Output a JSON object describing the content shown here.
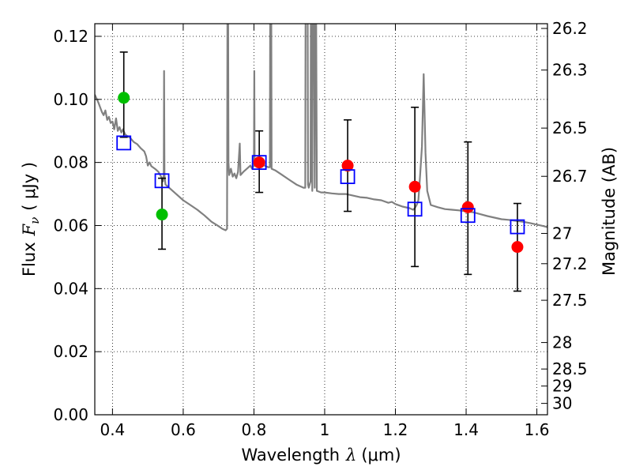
{
  "chart_data": {
    "type": "scatter",
    "title": "",
    "xlabel": "Wavelength",
    "xlabel_symbol": "λ",
    "xlabel_unit": "(μm)",
    "ylabel": "Flux",
    "ylabel_symbol": "F",
    "ylabel_subscript": "ν",
    "ylabel_unit": "( μJy )",
    "y2label": "Magnitude (AB)",
    "xlim": [
      0.35,
      1.63
    ],
    "ylim": [
      0.0,
      0.124
    ],
    "grid": true,
    "x_ticks": [
      {
        "value": 0.4,
        "label": "0.4"
      },
      {
        "value": 0.6,
        "label": "0.6"
      },
      {
        "value": 0.8,
        "label": "0.8"
      },
      {
        "value": 1.0,
        "label": "1"
      },
      {
        "value": 1.2,
        "label": "1.2"
      },
      {
        "value": 1.4,
        "label": "1.4"
      },
      {
        "value": 1.6,
        "label": "1.6"
      }
    ],
    "y_ticks": [
      {
        "value": 0.0,
        "label": "0.00"
      },
      {
        "value": 0.02,
        "label": "0.02"
      },
      {
        "value": 0.04,
        "label": "0.04"
      },
      {
        "value": 0.06,
        "label": "0.06"
      },
      {
        "value": 0.08,
        "label": "0.08"
      },
      {
        "value": 0.1,
        "label": "0.10"
      },
      {
        "value": 0.12,
        "label": "0.12"
      }
    ],
    "y2_ticks": [
      {
        "flux": 0.1225,
        "label": "26.2"
      },
      {
        "flux": 0.1093,
        "label": "26.3"
      },
      {
        "flux": 0.0909,
        "label": "26.5"
      },
      {
        "flux": 0.0756,
        "label": "26.7"
      },
      {
        "flux": 0.0575,
        "label": "27"
      },
      {
        "flux": 0.0479,
        "label": "27.2"
      },
      {
        "flux": 0.0363,
        "label": "27.5"
      },
      {
        "flux": 0.0229,
        "label": "28"
      },
      {
        "flux": 0.0145,
        "label": "28.5"
      },
      {
        "flux": 0.0091,
        "label": "29"
      },
      {
        "flux": 0.0036,
        "label": "30"
      }
    ],
    "series": [
      {
        "name": "model spectrum",
        "kind": "line",
        "color": "#808080",
        "points": [
          [
            0.35,
            0.1015
          ],
          [
            0.36,
            0.099
          ],
          [
            0.37,
            0.096
          ],
          [
            0.375,
            0.095
          ],
          [
            0.38,
            0.0965
          ],
          [
            0.385,
            0.0935
          ],
          [
            0.39,
            0.0945
          ],
          [
            0.395,
            0.0925
          ],
          [
            0.4,
            0.093
          ],
          [
            0.405,
            0.0905
          ],
          [
            0.41,
            0.094
          ],
          [
            0.415,
            0.09
          ],
          [
            0.42,
            0.0912
          ],
          [
            0.425,
            0.0895
          ],
          [
            0.43,
            0.0905
          ],
          [
            0.435,
            0.089
          ],
          [
            0.44,
            0.0885
          ],
          [
            0.45,
            0.0878
          ],
          [
            0.46,
            0.0865
          ],
          [
            0.47,
            0.0858
          ],
          [
            0.48,
            0.0845
          ],
          [
            0.49,
            0.0835
          ],
          [
            0.495,
            0.082
          ],
          [
            0.5,
            0.079
          ],
          [
            0.505,
            0.08
          ],
          [
            0.51,
            0.0788
          ],
          [
            0.52,
            0.078
          ],
          [
            0.53,
            0.077
          ],
          [
            0.535,
            0.076
          ],
          [
            0.54,
            0.075
          ],
          [
            0.543,
            0.074
          ],
          [
            0.545,
            0.076
          ],
          [
            0.546,
            0.109
          ],
          [
            0.547,
            0.076
          ],
          [
            0.55,
            0.073
          ],
          [
            0.56,
            0.072
          ],
          [
            0.58,
            0.07
          ],
          [
            0.6,
            0.068
          ],
          [
            0.62,
            0.0665
          ],
          [
            0.64,
            0.065
          ],
          [
            0.66,
            0.0632
          ],
          [
            0.68,
            0.0612
          ],
          [
            0.7,
            0.0598
          ],
          [
            0.71,
            0.059
          ],
          [
            0.72,
            0.0585
          ],
          [
            0.724,
            0.059
          ],
          [
            0.725,
            0.125
          ],
          [
            0.727,
            0.125
          ],
          [
            0.728,
            0.08
          ],
          [
            0.73,
            0.076
          ],
          [
            0.735,
            0.078
          ],
          [
            0.74,
            0.0755
          ],
          [
            0.745,
            0.0765
          ],
          [
            0.75,
            0.075
          ],
          [
            0.755,
            0.077
          ],
          [
            0.76,
            0.086
          ],
          [
            0.762,
            0.076
          ],
          [
            0.77,
            0.077
          ],
          [
            0.78,
            0.078
          ],
          [
            0.79,
            0.079
          ],
          [
            0.795,
            0.078
          ],
          [
            0.8,
            0.079
          ],
          [
            0.801,
            0.109
          ],
          [
            0.802,
            0.079
          ],
          [
            0.81,
            0.079
          ],
          [
            0.82,
            0.08
          ],
          [
            0.83,
            0.079
          ],
          [
            0.84,
            0.0785
          ],
          [
            0.845,
            0.0785
          ],
          [
            0.846,
            0.125
          ],
          [
            0.849,
            0.125
          ],
          [
            0.85,
            0.078
          ],
          [
            0.86,
            0.0775
          ],
          [
            0.88,
            0.076
          ],
          [
            0.9,
            0.0745
          ],
          [
            0.92,
            0.073
          ],
          [
            0.94,
            0.072
          ],
          [
            0.945,
            0.072
          ],
          [
            0.946,
            0.125
          ],
          [
            0.952,
            0.125
          ],
          [
            0.953,
            0.073
          ],
          [
            0.955,
            0.072
          ],
          [
            0.96,
            0.074
          ],
          [
            0.961,
            0.125
          ],
          [
            0.965,
            0.071
          ],
          [
            0.966,
            0.125
          ],
          [
            0.97,
            0.125
          ],
          [
            0.972,
            0.072
          ],
          [
            0.973,
            0.125
          ],
          [
            0.976,
            0.125
          ],
          [
            0.978,
            0.071
          ],
          [
            0.99,
            0.0705
          ],
          [
            1.0,
            0.0705
          ],
          [
            1.02,
            0.0702
          ],
          [
            1.04,
            0.07
          ],
          [
            1.06,
            0.07
          ],
          [
            1.08,
            0.0695
          ],
          [
            1.1,
            0.069
          ],
          [
            1.12,
            0.0688
          ],
          [
            1.14,
            0.0683
          ],
          [
            1.16,
            0.068
          ],
          [
            1.18,
            0.0672
          ],
          [
            1.19,
            0.0675
          ],
          [
            1.2,
            0.0668
          ],
          [
            1.22,
            0.066
          ],
          [
            1.24,
            0.0655
          ],
          [
            1.25,
            0.065
          ],
          [
            1.255,
            0.0655
          ],
          [
            1.26,
            0.0665
          ],
          [
            1.265,
            0.068
          ],
          [
            1.27,
            0.076
          ],
          [
            1.275,
            0.085
          ],
          [
            1.28,
            0.108
          ],
          [
            1.285,
            0.083
          ],
          [
            1.29,
            0.071
          ],
          [
            1.3,
            0.0665
          ],
          [
            1.32,
            0.0658
          ],
          [
            1.34,
            0.0652
          ],
          [
            1.36,
            0.065
          ],
          [
            1.38,
            0.0648
          ],
          [
            1.4,
            0.0645
          ],
          [
            1.42,
            0.0642
          ],
          [
            1.44,
            0.0636
          ],
          [
            1.46,
            0.063
          ],
          [
            1.48,
            0.0625
          ],
          [
            1.5,
            0.062
          ],
          [
            1.52,
            0.0618
          ],
          [
            1.54,
            0.0615
          ],
          [
            1.56,
            0.0612
          ],
          [
            1.58,
            0.0608
          ],
          [
            1.6,
            0.0603
          ],
          [
            1.62,
            0.0598
          ],
          [
            1.63,
            0.0595
          ]
        ]
      },
      {
        "name": "observed (green)",
        "kind": "points-with-errorbars",
        "color": "#00bf00",
        "points": [
          {
            "x": 0.432,
            "y": 0.1005,
            "err_low": 0.088,
            "err_high": 0.115
          },
          {
            "x": 0.54,
            "y": 0.0635,
            "err_low": 0.0525,
            "err_high": 0.075
          }
        ]
      },
      {
        "name": "observed (red)",
        "kind": "points-with-errorbars",
        "color": "#ff0000",
        "points": [
          {
            "x": 0.815,
            "y": 0.08,
            "err_low": 0.0705,
            "err_high": 0.09
          },
          {
            "x": 1.065,
            "y": 0.079,
            "err_low": 0.0645,
            "err_high": 0.0935
          },
          {
            "x": 1.255,
            "y": 0.0723,
            "err_low": 0.047,
            "err_high": 0.0975
          },
          {
            "x": 1.405,
            "y": 0.0658,
            "err_low": 0.0445,
            "err_high": 0.0865
          },
          {
            "x": 1.545,
            "y": 0.0532,
            "err_low": 0.0392,
            "err_high": 0.067
          }
        ]
      },
      {
        "name": "model photometry",
        "kind": "open-squares",
        "color": "#0000ff",
        "points": [
          {
            "x": 0.432,
            "y": 0.0862
          },
          {
            "x": 0.54,
            "y": 0.0742
          },
          {
            "x": 0.815,
            "y": 0.08
          },
          {
            "x": 1.065,
            "y": 0.0755
          },
          {
            "x": 1.255,
            "y": 0.0652
          },
          {
            "x": 1.405,
            "y": 0.0632
          },
          {
            "x": 1.545,
            "y": 0.0596
          }
        ]
      }
    ]
  }
}
